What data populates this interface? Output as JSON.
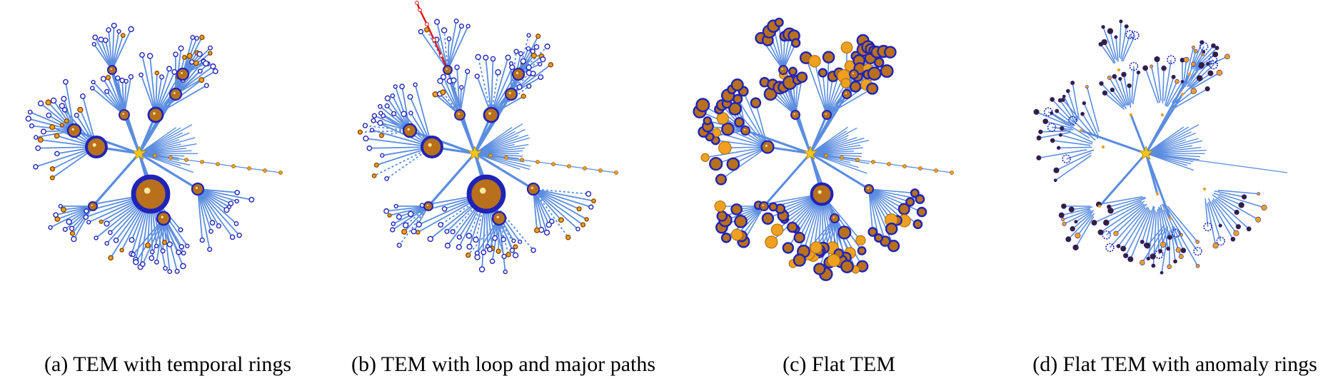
{
  "figure": {
    "panels": [
      {
        "id": "a",
        "caption": "(a) TEM with temporal rings",
        "variant": "rings"
      },
      {
        "id": "b",
        "caption": "(b) TEM with loop and major paths",
        "variant": "loop"
      },
      {
        "id": "c",
        "caption": "(c) Flat TEM",
        "variant": "flat"
      },
      {
        "id": "d",
        "caption": "(d) Flat TEM with anomaly rings",
        "variant": "anomaly"
      }
    ]
  },
  "colors": {
    "edge": "#5b8de0",
    "node_fill": "#b8701c",
    "node_ring": "#1f23b8",
    "orange_node": "#f0a020",
    "star": "#f5c518",
    "loop_path": "#e01010",
    "dark_node": "#3a1f2f"
  }
}
